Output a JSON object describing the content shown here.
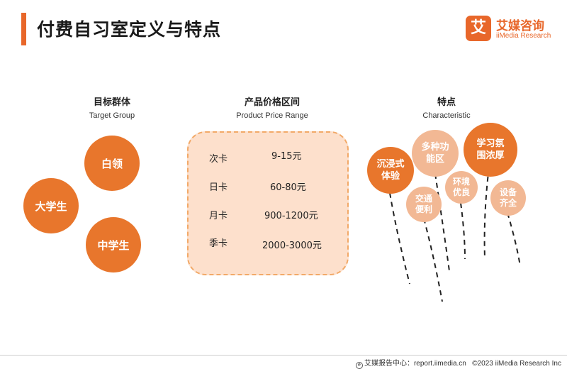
{
  "page": {
    "title": "付费自习室定义与特点"
  },
  "logo": {
    "mark": "艾",
    "name_cn": "艾媒咨询",
    "name_en": "iiMedia Research"
  },
  "columns": {
    "target_group": {
      "title": "目标群体",
      "subtitle": "Target Group",
      "items": [
        "白领",
        "大学生",
        "中学生"
      ]
    },
    "price": {
      "title": "产品价格区间",
      "subtitle": "Product Price Range",
      "rows": [
        {
          "type": "次卡",
          "price": "9-15元"
        },
        {
          "type": "日卡",
          "price": "60-80元"
        },
        {
          "type": "月卡",
          "price": "900-1200元"
        },
        {
          "type": "季卡",
          "price": "2000-3000元"
        }
      ]
    },
    "characteristic": {
      "title": "特点",
      "subtitle": "Characteristic",
      "balloons": [
        {
          "line1": "沉浸式",
          "line2": "体验",
          "style": "dark"
        },
        {
          "line1": "多种功",
          "line2": "能区",
          "style": "light"
        },
        {
          "line1": "学习氛",
          "line2": "围浓厚",
          "style": "dark"
        },
        {
          "line1": "交通",
          "line2": "便利",
          "style": "light"
        },
        {
          "line1": "环境",
          "line2": "优良",
          "style": "light"
        },
        {
          "line1": "设备",
          "line2": "齐全",
          "style": "light"
        }
      ]
    }
  },
  "colors": {
    "accent": "#e8672a",
    "circle_dark": "#e8762c",
    "circle_light": "#f2b894",
    "price_bg": "#fde0cc"
  },
  "footer": {
    "icon": "iimedia-icon",
    "source_label": "艾媒报告中心：report.iimedia.cn",
    "copyright": "©2023  iiMedia Research  Inc"
  }
}
